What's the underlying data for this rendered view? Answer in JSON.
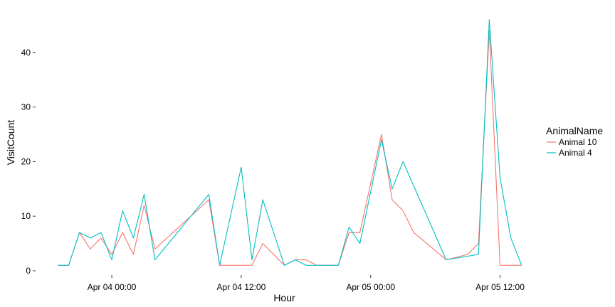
{
  "chart_data": {
    "type": "line",
    "xlabel": "Hour",
    "ylabel": "VisitCount",
    "x_ticks": [
      "Apr 04 00:00",
      "Apr 04 12:00",
      "Apr 05 00:00",
      "Apr 05 12:00"
    ],
    "y_ticks": [
      "0",
      "10",
      "20",
      "30",
      "40"
    ],
    "xlim": [
      "2017-04-03 17:00",
      "2017-04-05 15:00"
    ],
    "ylim": [
      0,
      47
    ],
    "grid": false,
    "legend": {
      "title": "AnimalName",
      "position": "right"
    },
    "series": [
      {
        "name": "Animal 10",
        "color": "#F8766D",
        "points": [
          [
            "2017-04-03 19:00",
            1
          ],
          [
            "2017-04-03 20:00",
            1
          ],
          [
            "2017-04-03 21:00",
            7
          ],
          [
            "2017-04-03 22:00",
            4
          ],
          [
            "2017-04-03 23:00",
            6
          ],
          [
            "2017-04-04 00:00",
            3
          ],
          [
            "2017-04-04 01:00",
            7
          ],
          [
            "2017-04-04 02:00",
            3
          ],
          [
            "2017-04-04 03:00",
            12
          ],
          [
            "2017-04-04 04:00",
            4
          ],
          [
            "2017-04-04 09:00",
            13
          ],
          [
            "2017-04-04 10:00",
            1
          ],
          [
            "2017-04-04 13:00",
            1
          ],
          [
            "2017-04-04 14:00",
            5
          ],
          [
            "2017-04-04 16:00",
            1
          ],
          [
            "2017-04-04 17:00",
            2
          ],
          [
            "2017-04-04 18:00",
            2
          ],
          [
            "2017-04-04 19:00",
            1
          ],
          [
            "2017-04-04 20:00",
            1
          ],
          [
            "2017-04-04 21:00",
            1
          ],
          [
            "2017-04-04 22:00",
            7
          ],
          [
            "2017-04-04 23:00",
            7
          ],
          [
            "2017-04-05 01:00",
            25
          ],
          [
            "2017-04-05 02:00",
            13
          ],
          [
            "2017-04-05 03:00",
            11
          ],
          [
            "2017-04-05 04:00",
            7
          ],
          [
            "2017-04-05 07:00",
            2
          ],
          [
            "2017-04-05 09:00",
            3
          ],
          [
            "2017-04-05 10:00",
            5
          ],
          [
            "2017-04-05 11:00",
            44
          ],
          [
            "2017-04-05 12:00",
            1
          ],
          [
            "2017-04-05 14:00",
            1
          ]
        ]
      },
      {
        "name": "Animal 4",
        "color": "#00BFC4",
        "points": [
          [
            "2017-04-03 19:00",
            1
          ],
          [
            "2017-04-03 20:00",
            1
          ],
          [
            "2017-04-03 21:00",
            7
          ],
          [
            "2017-04-03 22:00",
            6
          ],
          [
            "2017-04-03 23:00",
            7
          ],
          [
            "2017-04-04 00:00",
            2
          ],
          [
            "2017-04-04 01:00",
            11
          ],
          [
            "2017-04-04 02:00",
            6
          ],
          [
            "2017-04-04 03:00",
            14
          ],
          [
            "2017-04-04 04:00",
            2
          ],
          [
            "2017-04-04 09:00",
            14
          ],
          [
            "2017-04-04 10:00",
            1
          ],
          [
            "2017-04-04 12:00",
            19
          ],
          [
            "2017-04-04 13:00",
            2
          ],
          [
            "2017-04-04 14:00",
            13
          ],
          [
            "2017-04-04 16:00",
            1
          ],
          [
            "2017-04-04 17:00",
            2
          ],
          [
            "2017-04-04 18:00",
            1
          ],
          [
            "2017-04-04 19:00",
            1
          ],
          [
            "2017-04-04 20:00",
            1
          ],
          [
            "2017-04-04 21:00",
            1
          ],
          [
            "2017-04-04 22:00",
            8
          ],
          [
            "2017-04-04 23:00",
            5
          ],
          [
            "2017-04-05 01:00",
            24
          ],
          [
            "2017-04-05 02:00",
            15
          ],
          [
            "2017-04-05 03:00",
            20
          ],
          [
            "2017-04-05 07:00",
            2
          ],
          [
            "2017-04-05 10:00",
            3
          ],
          [
            "2017-04-05 11:00",
            46
          ],
          [
            "2017-04-05 12:00",
            17
          ],
          [
            "2017-04-05 13:00",
            6
          ],
          [
            "2017-04-05 14:00",
            1
          ]
        ]
      }
    ]
  }
}
